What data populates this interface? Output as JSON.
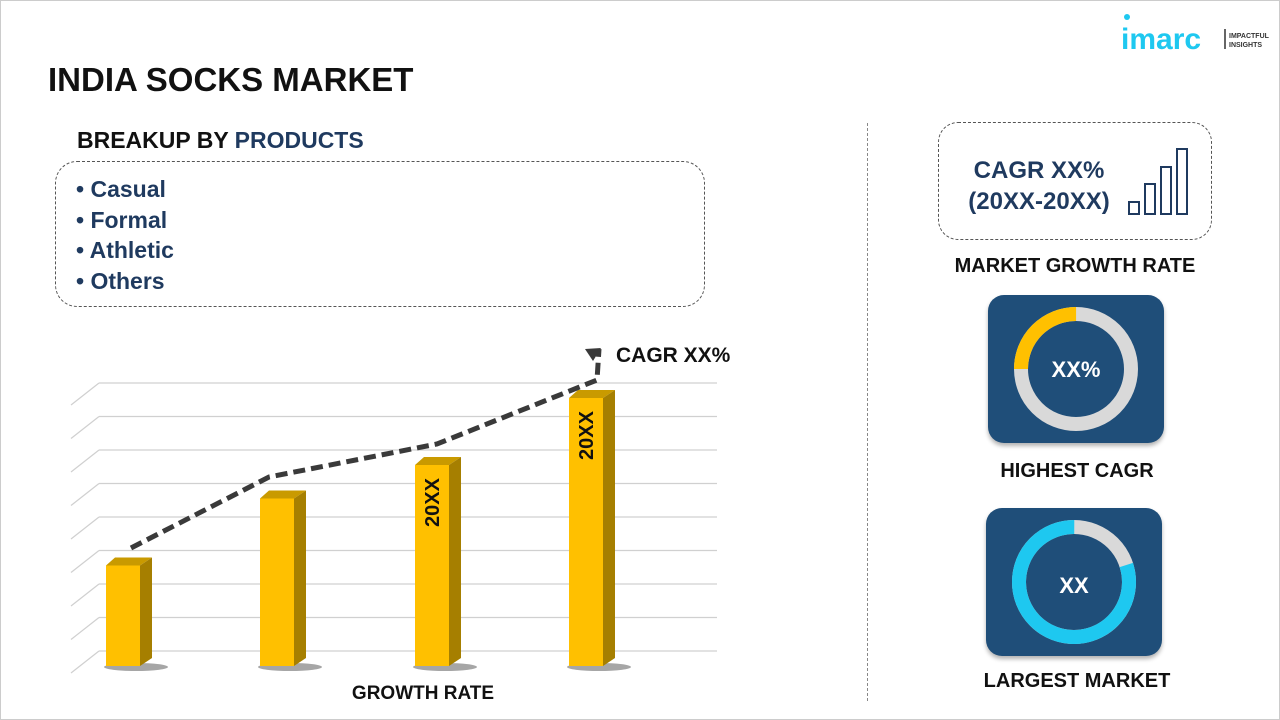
{
  "header": {
    "title": "INDIA SOCKS MARKET",
    "logo_text": "imarc",
    "logo_tagline": "IMPACTFUL INSIGHTS"
  },
  "breakup": {
    "prefix": "BREAKUP BY ",
    "highlight": "PRODUCTS",
    "items": [
      "Casual",
      "Formal",
      "Athletic",
      "Others"
    ]
  },
  "growth_box": {
    "line1": "CAGR XX%",
    "line2": "(20XX-20XX)",
    "label": "MARKET GROWTH RATE"
  },
  "highest": {
    "value": "XX%",
    "label": "HIGHEST CAGR",
    "fraction": 0.25
  },
  "largest": {
    "value": "XX",
    "label": "LARGEST MARKET",
    "fraction": 0.8
  },
  "colors": {
    "navy": "#1f4e79",
    "bar": "#ffc000",
    "ring_yellow": "#ffc000",
    "ring_cyan": "#1ec8f0",
    "ring_gray": "#d9d9d9"
  },
  "chart_data": {
    "type": "bar",
    "categories": [
      "",
      "",
      "",
      ""
    ],
    "values": [
      3,
      5,
      6,
      8
    ],
    "bar_labels": [
      "",
      "",
      "20XX",
      "20XX"
    ],
    "trend_annotation": "CAGR XX%",
    "xlabel": "GROWTH RATE",
    "ylabel": "",
    "ylim": [
      0,
      8.5
    ],
    "grid": true
  }
}
